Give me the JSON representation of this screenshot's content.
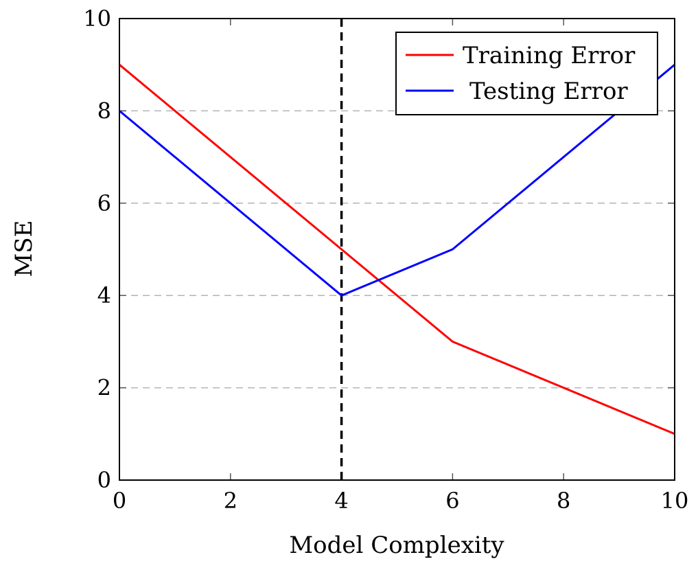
{
  "chart_data": {
    "type": "line",
    "xlabel": "Model Complexity",
    "ylabel": "MSE",
    "xlim": [
      0,
      10
    ],
    "ylim": [
      0,
      10
    ],
    "xticks": [
      0,
      2,
      4,
      6,
      8,
      10
    ],
    "yticks": [
      0,
      2,
      4,
      6,
      8,
      10
    ],
    "grid": "horizontal dashed",
    "legend_position": "top-right",
    "series": [
      {
        "name": "Training Error",
        "color": "#ff0000",
        "x": [
          0,
          4,
          6,
          10
        ],
        "y": [
          9,
          5,
          3,
          1
        ]
      },
      {
        "name": "Testing Error",
        "color": "#0000ff",
        "x": [
          0,
          4,
          6,
          10
        ],
        "y": [
          8,
          4,
          5,
          9
        ]
      }
    ],
    "vertical_line": {
      "x": 4,
      "style": "dashed",
      "color": "#000000"
    }
  }
}
